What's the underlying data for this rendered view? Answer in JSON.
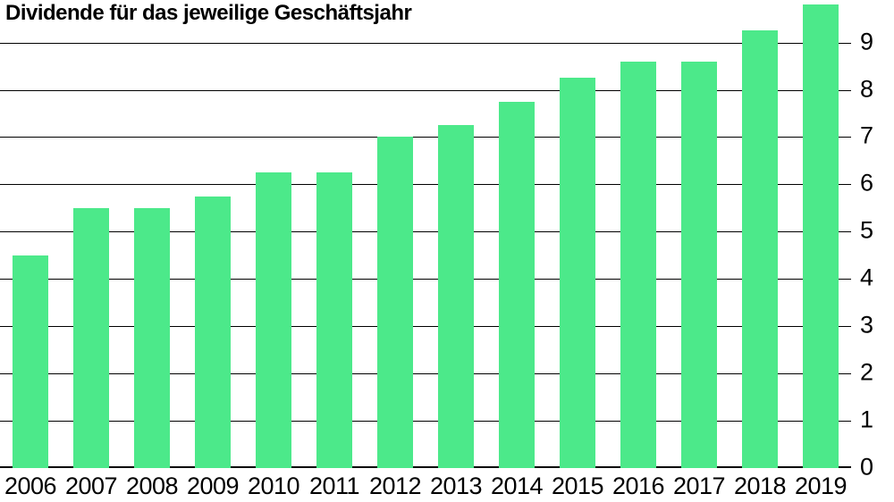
{
  "chart_data": {
    "type": "bar",
    "title": "Dividende für das jeweilige Geschäftsjahr",
    "categories": [
      "2006",
      "2007",
      "2008",
      "2009",
      "2010",
      "2011",
      "2012",
      "2013",
      "2014",
      "2015",
      "2016",
      "2017",
      "2018",
      "2019"
    ],
    "values": [
      4.5,
      5.5,
      5.5,
      5.75,
      6.25,
      6.25,
      7.0,
      7.25,
      7.75,
      8.25,
      8.6,
      8.6,
      9.25,
      9.8
    ],
    "xlabel": "",
    "ylabel": "",
    "ylim": [
      0,
      9.9
    ],
    "yticks": [
      0,
      1,
      2,
      3,
      4,
      5,
      6,
      7,
      8,
      9
    ],
    "ytick_side": "right",
    "grid": true,
    "legend": false,
    "bar_color": "#4ce98a",
    "grid_color": "#000000",
    "text_color": "#000000",
    "background_color": "#ffffff"
  }
}
